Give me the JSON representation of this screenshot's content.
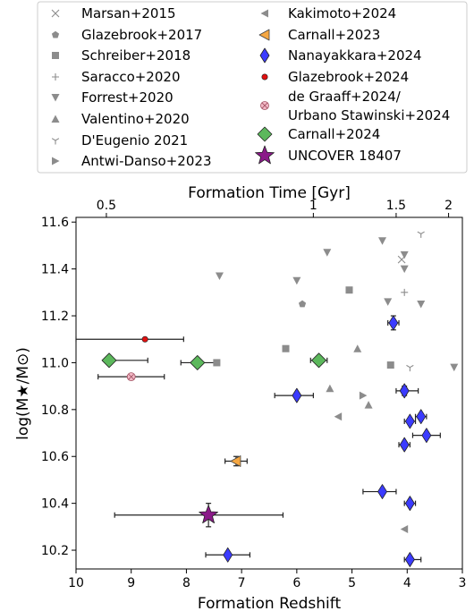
{
  "chart_data": {
    "type": "scatter",
    "xlabel": "Formation Redshift",
    "ylabel": "log(M★/M⊙)",
    "top_xlabel": "Formation Time [Gyr]",
    "xlim": [
      10,
      3
    ],
    "ylim": [
      10.12,
      11.62
    ],
    "x_ticks": [
      10,
      9,
      8,
      7,
      6,
      5,
      4,
      3
    ],
    "y_ticks": [
      10.2,
      10.4,
      10.6,
      10.8,
      11.0,
      11.2,
      11.4,
      11.6
    ],
    "top_ticks": [
      {
        "label": "0.5",
        "z": 9.45
      },
      {
        "label": "1",
        "z": 5.7
      },
      {
        "label": "1.5",
        "z": 4.2
      },
      {
        "label": "2",
        "z": 3.25
      }
    ],
    "legend_position": "top",
    "series": [
      {
        "name": "Marsan+2015",
        "marker": "x",
        "color": "#8c8c8c",
        "points": [
          [
            4.1,
            11.44
          ]
        ]
      },
      {
        "name": "Glazebrook+2017",
        "marker": "pentagon",
        "color": "#8c8c8c",
        "points": [
          [
            5.9,
            11.25
          ]
        ]
      },
      {
        "name": "Schreiber+2018",
        "marker": "square",
        "color": "#8c8c8c",
        "points": [
          [
            5.05,
            11.31
          ],
          [
            6.2,
            11.06
          ],
          [
            7.45,
            11.0
          ],
          [
            4.3,
            10.99
          ]
        ]
      },
      {
        "name": "Saracco+2020",
        "marker": "plus",
        "color": "#8c8c8c",
        "points": [
          [
            4.05,
            11.3
          ]
        ]
      },
      {
        "name": "Forrest+2020",
        "marker": "triangle-down",
        "color": "#8c8c8c",
        "points": [
          [
            4.45,
            11.52
          ],
          [
            5.45,
            11.47
          ],
          [
            4.05,
            11.46
          ],
          [
            4.05,
            11.4
          ],
          [
            7.4,
            11.37
          ],
          [
            6.0,
            11.35
          ],
          [
            4.35,
            11.26
          ],
          [
            3.75,
            11.25
          ],
          [
            3.15,
            10.98
          ]
        ]
      },
      {
        "name": "Valentino+2020",
        "marker": "triangle-up",
        "color": "#8c8c8c",
        "points": [
          [
            4.9,
            11.06
          ],
          [
            5.4,
            10.89
          ],
          [
            4.7,
            10.82
          ]
        ]
      },
      {
        "name": "D'Eugenio 2021",
        "marker": "tri-down",
        "color": "#8c8c8c",
        "points": [
          [
            3.75,
            11.55
          ],
          [
            3.95,
            10.98
          ]
        ]
      },
      {
        "name": "Antwi-Danso+2023",
        "marker": "triangle-right",
        "color": "#8c8c8c",
        "points": [
          [
            4.8,
            10.86
          ]
        ]
      },
      {
        "name": "Kakimoto+2024",
        "marker": "triangle-left",
        "color": "#8c8c8c",
        "points": [
          [
            5.25,
            10.77
          ],
          [
            4.05,
            10.29
          ]
        ]
      },
      {
        "name": "Carnall+2023",
        "marker": "triangle-left-big",
        "color": "#f5a742",
        "points": [
          [
            7.1,
            10.58,
            0.2,
            0.2,
            0.02
          ]
        ]
      },
      {
        "name": "Nanayakkara+2024",
        "marker": "thin-diamond",
        "color": "#3b3bff",
        "points": [
          [
            4.25,
            11.17,
            0.1,
            0.1,
            0.03
          ],
          [
            6.0,
            10.86,
            0.4,
            0.3,
            0.0
          ],
          [
            4.05,
            10.88,
            0.15,
            0.25,
            0.02
          ],
          [
            3.95,
            10.75,
            0.1,
            0.1,
            0.0
          ],
          [
            3.75,
            10.77,
            0.1,
            0.1,
            0.0
          ],
          [
            3.65,
            10.69,
            0.25,
            0.25,
            0.0
          ],
          [
            4.05,
            10.65,
            0.1,
            0.1,
            0.0
          ],
          [
            4.45,
            10.45,
            0.35,
            0.25,
            0.0
          ],
          [
            3.95,
            10.4,
            0.1,
            0.1,
            0.0
          ],
          [
            7.25,
            10.18,
            0.4,
            0.4,
            0.0
          ],
          [
            3.95,
            10.16,
            0.1,
            0.2,
            0.0
          ]
        ]
      },
      {
        "name": "Glazebrook+2024",
        "marker": "circle-small",
        "color": "#e01010",
        "points": [
          [
            8.75,
            11.1,
            1.25,
            0.7,
            0.0
          ]
        ]
      },
      {
        "name": "de Graaff+2024/\nUrbano Stawinski+2024",
        "marker": "circle-x",
        "color": "#f2b8c6",
        "points": [
          [
            9.0,
            10.94,
            0.6,
            0.6,
            0.0
          ]
        ]
      },
      {
        "name": "Carnall+2024",
        "marker": "diamond",
        "color": "#5cb85c",
        "points": [
          [
            9.4,
            11.01,
            0.0,
            0.7,
            0.0
          ],
          [
            7.8,
            11.0,
            0.3,
            0.4,
            0.0
          ],
          [
            5.6,
            11.01,
            0.15,
            0.15,
            0.0
          ]
        ]
      },
      {
        "name": "UNCOVER 18407",
        "marker": "star",
        "color": "#8b1a89",
        "points": [
          [
            7.6,
            10.35,
            1.7,
            1.35,
            0.05
          ]
        ]
      }
    ]
  }
}
